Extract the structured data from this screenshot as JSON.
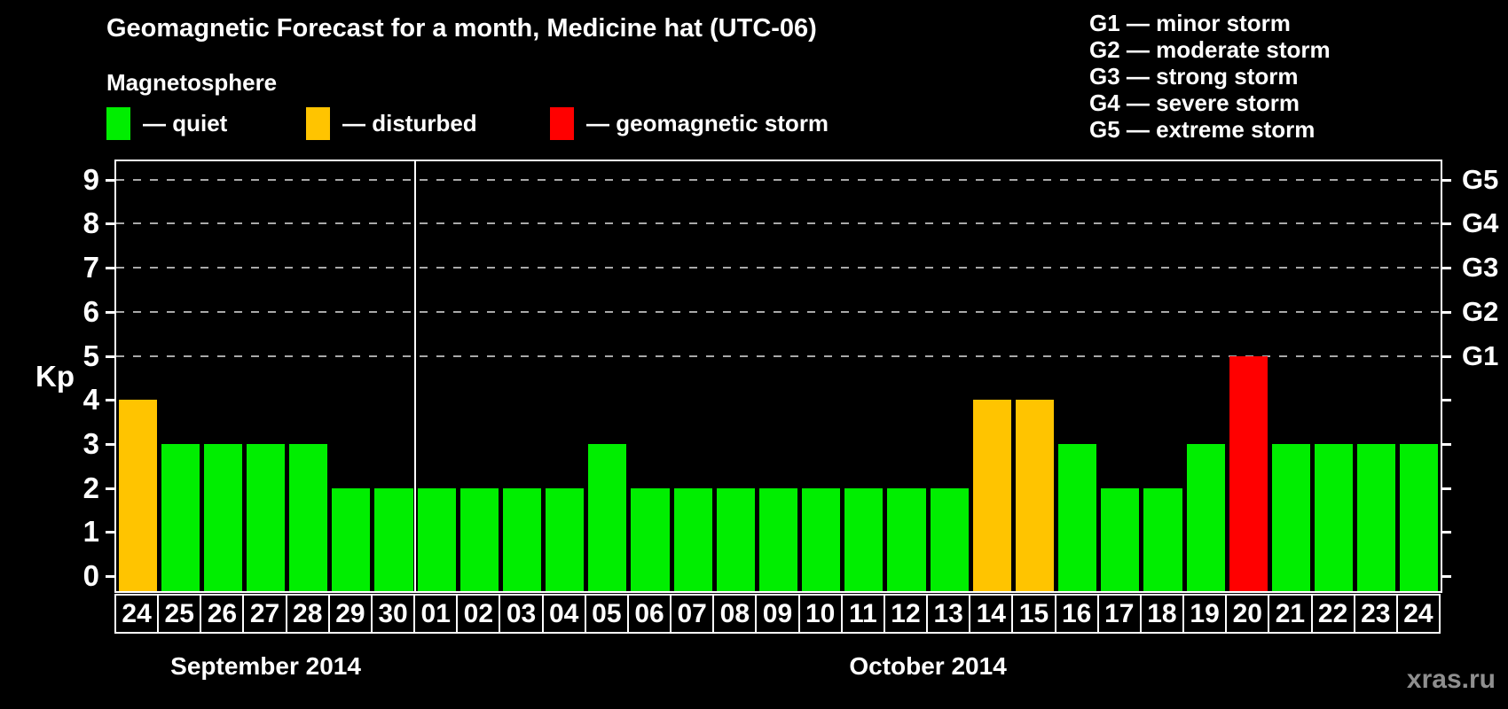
{
  "title": "Geomagnetic Forecast for a month, Medicine hat (UTC-06)",
  "subtitle": "Magnetosphere",
  "watermark": "xras.ru",
  "colors": {
    "quiet": "#00EE00",
    "disturbed": "#FFC400",
    "storm": "#FF0000",
    "grid": "#A9A9A9",
    "axis": "#FFFFFF",
    "watermark_text": "#8F8F8F"
  },
  "legend": [
    {
      "color_key": "quiet",
      "label": "— quiet"
    },
    {
      "color_key": "disturbed",
      "label": "— disturbed"
    },
    {
      "color_key": "storm",
      "label": "— geomagnetic storm"
    }
  ],
  "g_storm_legend": [
    "G1 — minor storm",
    "G2 — moderate storm",
    "G3 — strong storm",
    "G4 — severe storm",
    "G5 — extreme storm"
  ],
  "chart_data": {
    "type": "bar",
    "title": "Geomagnetic Forecast for a month, Medicine hat (UTC-06)",
    "ylabel": "Kp",
    "ylim": [
      0,
      9
    ],
    "yticks": [
      0,
      1,
      2,
      3,
      4,
      5,
      6,
      7,
      8,
      9
    ],
    "grid_levels": [
      5,
      6,
      7,
      8,
      9
    ],
    "grid": "dashed, horizontal, at G-storm levels only",
    "legend_position": "top",
    "right_axis_labels": [
      {
        "kp": 5,
        "label": "G1"
      },
      {
        "kp": 6,
        "label": "G2"
      },
      {
        "kp": 7,
        "label": "G3"
      },
      {
        "kp": 8,
        "label": "G4"
      },
      {
        "kp": 9,
        "label": "G5"
      }
    ],
    "months": [
      {
        "label": "September 2014",
        "days": 7
      },
      {
        "label": "October 2014",
        "days": 24
      }
    ],
    "categories": [
      "24",
      "25",
      "26",
      "27",
      "28",
      "29",
      "30",
      "01",
      "02",
      "03",
      "04",
      "05",
      "06",
      "07",
      "08",
      "09",
      "10",
      "11",
      "12",
      "13",
      "14",
      "15",
      "16",
      "17",
      "18",
      "19",
      "20",
      "21",
      "22",
      "23",
      "24"
    ],
    "values": [
      4,
      3,
      3,
      3,
      3,
      2,
      2,
      2,
      2,
      2,
      2,
      3,
      2,
      2,
      2,
      2,
      2,
      2,
      2,
      2,
      4,
      4,
      3,
      2,
      2,
      3,
      5,
      3,
      3,
      3,
      3
    ],
    "status": [
      "disturbed",
      "quiet",
      "quiet",
      "quiet",
      "quiet",
      "quiet",
      "quiet",
      "quiet",
      "quiet",
      "quiet",
      "quiet",
      "quiet",
      "quiet",
      "quiet",
      "quiet",
      "quiet",
      "quiet",
      "quiet",
      "quiet",
      "quiet",
      "disturbed",
      "disturbed",
      "quiet",
      "quiet",
      "quiet",
      "quiet",
      "storm",
      "quiet",
      "quiet",
      "quiet",
      "quiet"
    ]
  }
}
